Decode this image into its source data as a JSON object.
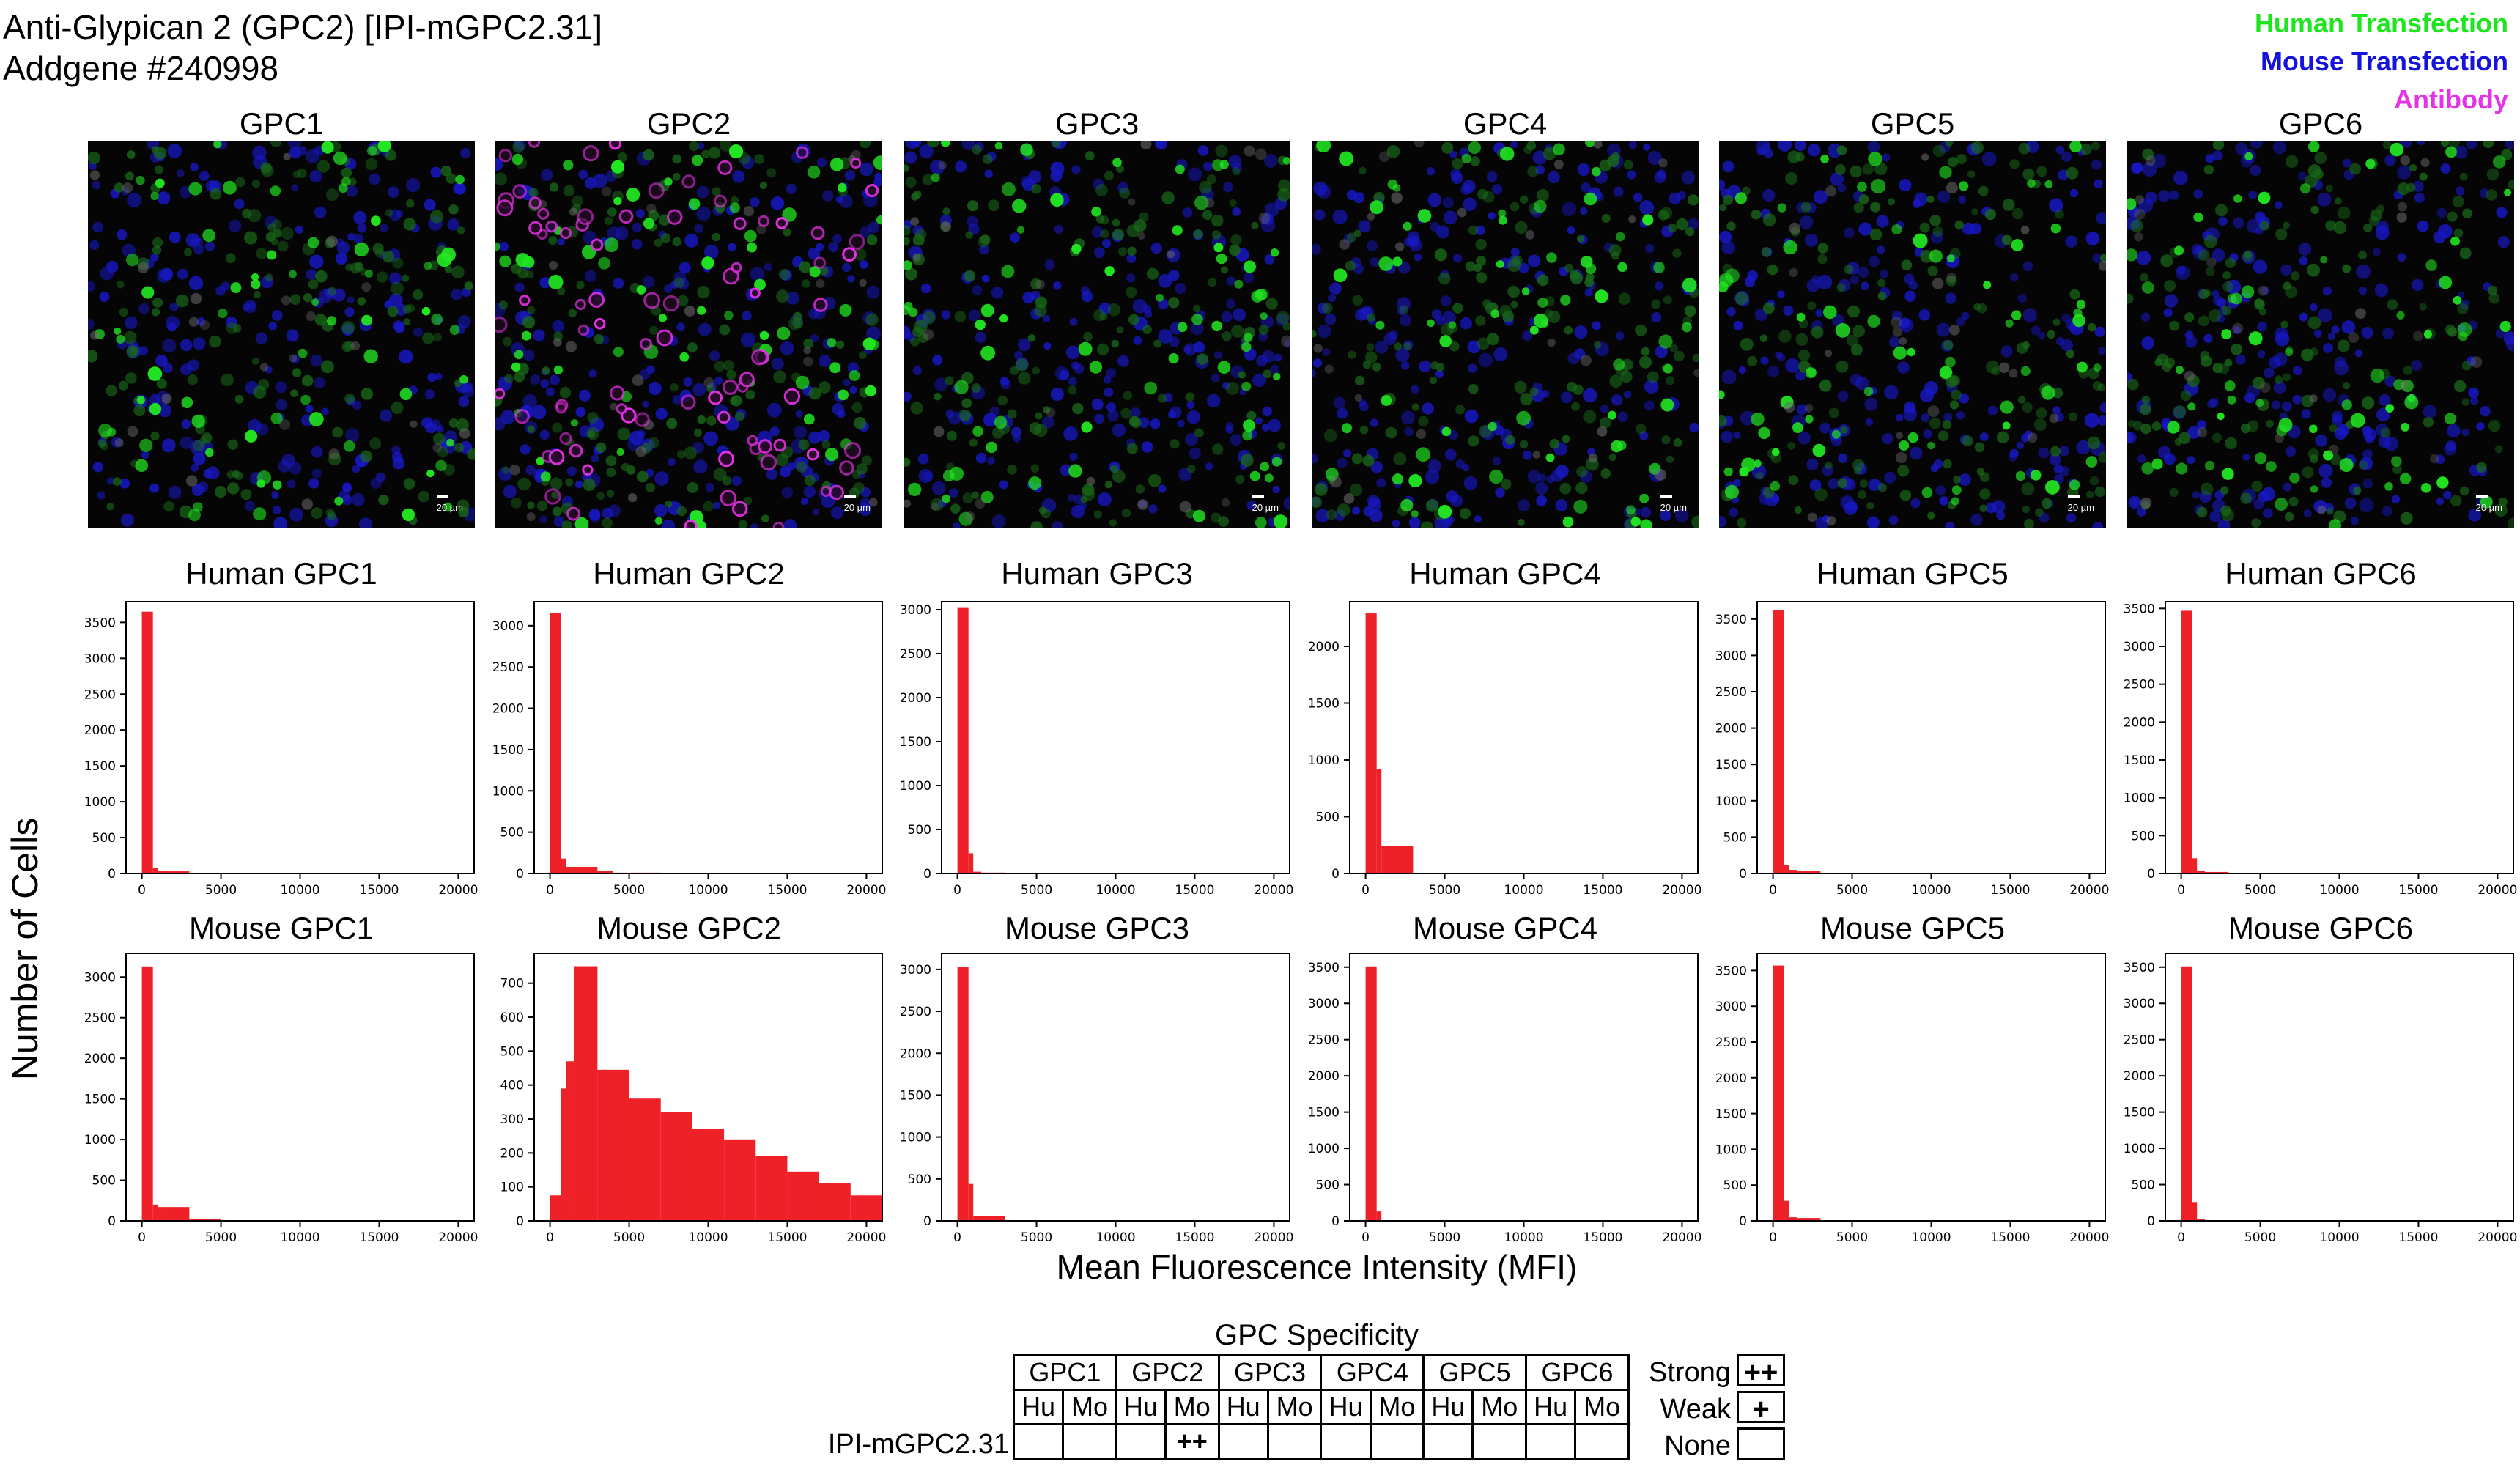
{
  "header": {
    "title_line1": "Anti-Glypican 2 (GPC2) [IPI-mGPC2.31]",
    "title_line2": "Addgene #240998"
  },
  "legend": [
    {
      "label": "Human Transfection",
      "color": "#1EE61E"
    },
    {
      "label": "Mouse Transfection",
      "color": "#1414DC"
    },
    {
      "label": "Antibody",
      "color": "#E632E6"
    }
  ],
  "images": [
    {
      "title": "GPC1",
      "scale": "20 µm",
      "antibody": false
    },
    {
      "title": "GPC2",
      "scale": "20 µm",
      "antibody": true
    },
    {
      "title": "GPC3",
      "scale": "20 µm",
      "antibody": false
    },
    {
      "title": "GPC4",
      "scale": "20 µm",
      "antibody": false
    },
    {
      "title": "GPC5",
      "scale": "20 µm",
      "antibody": false
    },
    {
      "title": "GPC6",
      "scale": "20 µm",
      "antibody": false
    }
  ],
  "axes": {
    "ylabel": "Number of Cells",
    "xlabel": "Mean Fluorescence Intensity (MFI)"
  },
  "chart_data": [
    {
      "type": "bar",
      "title": "Human GPC1",
      "xlim": [
        -1000,
        21000
      ],
      "xticks": [
        0,
        5000,
        10000,
        15000,
        20000
      ],
      "ylim": [
        0,
        3800
      ],
      "yticks": [
        0,
        500,
        1000,
        1500,
        2000,
        2500,
        3000,
        3500
      ],
      "color": "#EE2028",
      "bin_edges": [
        0,
        700,
        1000,
        1500,
        3000
      ],
      "values": [
        3650,
        80,
        40,
        30
      ]
    },
    {
      "type": "bar",
      "title": "Human GPC2",
      "xlim": [
        -1000,
        21000
      ],
      "xticks": [
        0,
        5000,
        10000,
        15000,
        20000
      ],
      "ylim": [
        0,
        3300
      ],
      "yticks": [
        0,
        500,
        1000,
        1500,
        2000,
        2500,
        3000
      ],
      "color": "#EE2028",
      "bin_edges": [
        0,
        700,
        1000,
        1500,
        3000,
        4000,
        7000
      ],
      "values": [
        3150,
        180,
        80,
        80,
        30,
        10
      ]
    },
    {
      "type": "bar",
      "title": "Human GPC3",
      "xlim": [
        -1000,
        21000
      ],
      "xticks": [
        0,
        5000,
        10000,
        15000,
        20000
      ],
      "ylim": [
        0,
        3100
      ],
      "yticks": [
        0,
        500,
        1000,
        1500,
        2000,
        2500,
        3000
      ],
      "color": "#EE2028",
      "bin_edges": [
        0,
        700,
        1000,
        1500,
        3000
      ],
      "values": [
        3020,
        230,
        20,
        10
      ]
    },
    {
      "type": "bar",
      "title": "Human GPC4",
      "xlim": [
        -1000,
        21000
      ],
      "xticks": [
        0,
        5000,
        10000,
        15000,
        20000
      ],
      "ylim": [
        0,
        2400
      ],
      "yticks": [
        0,
        500,
        1000,
        1500,
        2000
      ],
      "color": "#EE2028",
      "bin_edges": [
        0,
        700,
        1000,
        1500,
        3000
      ],
      "values": [
        2290,
        920,
        240,
        240
      ]
    },
    {
      "type": "bar",
      "title": "Human GPC5",
      "xlim": [
        -1000,
        21000
      ],
      "xticks": [
        0,
        5000,
        10000,
        15000,
        20000
      ],
      "ylim": [
        0,
        3750
      ],
      "yticks": [
        0,
        500,
        1000,
        1500,
        2000,
        2500,
        3000,
        3500
      ],
      "color": "#EE2028",
      "bin_edges": [
        0,
        700,
        1000,
        1500,
        3000
      ],
      "values": [
        3620,
        120,
        50,
        40
      ]
    },
    {
      "type": "bar",
      "title": "Human GPC6",
      "xlim": [
        -1000,
        21000
      ],
      "xticks": [
        0,
        5000,
        10000,
        15000,
        20000
      ],
      "ylim": [
        0,
        3600
      ],
      "yticks": [
        0,
        500,
        1000,
        1500,
        2000,
        2500,
        3000,
        3500
      ],
      "color": "#EE2028",
      "bin_edges": [
        0,
        700,
        1000,
        1500,
        3000
      ],
      "values": [
        3470,
        200,
        30,
        20
      ]
    },
    {
      "type": "bar",
      "title": "Mouse GPC1",
      "xlim": [
        -1000,
        21000
      ],
      "xticks": [
        0,
        5000,
        10000,
        15000,
        20000
      ],
      "ylim": [
        0,
        3300
      ],
      "yticks": [
        0,
        500,
        1000,
        1500,
        2000,
        2500,
        3000
      ],
      "color": "#EE2028",
      "bin_edges": [
        0,
        700,
        1000,
        1500,
        3000,
        5000
      ],
      "values": [
        3130,
        200,
        170,
        170,
        20
      ]
    },
    {
      "type": "bar",
      "title": "Mouse GPC2",
      "xlim": [
        -1000,
        21000
      ],
      "xticks": [
        0,
        5000,
        10000,
        15000,
        20000
      ],
      "ylim": [
        0,
        790
      ],
      "yticks": [
        0,
        100,
        200,
        300,
        400,
        500,
        600,
        700
      ],
      "color": "#EE2028",
      "bin_edges": [
        0,
        700,
        1000,
        1500,
        3000,
        5000,
        7000,
        9000,
        11000,
        13000,
        15000,
        17000,
        19000,
        21000
      ],
      "values": [
        75,
        390,
        470,
        750,
        445,
        360,
        320,
        270,
        240,
        190,
        145,
        110,
        75
      ]
    },
    {
      "type": "bar",
      "title": "Mouse GPC3",
      "xlim": [
        -1000,
        21000
      ],
      "xticks": [
        0,
        5000,
        10000,
        15000,
        20000
      ],
      "ylim": [
        0,
        3200
      ],
      "yticks": [
        0,
        500,
        1000,
        1500,
        2000,
        2500,
        3000
      ],
      "color": "#EE2028",
      "bin_edges": [
        0,
        700,
        1000,
        1500,
        3000
      ],
      "values": [
        3030,
        440,
        60,
        60
      ]
    },
    {
      "type": "bar",
      "title": "Mouse GPC4",
      "xlim": [
        -1000,
        21000
      ],
      "xticks": [
        0,
        5000,
        10000,
        15000,
        20000
      ],
      "ylim": [
        0,
        3700
      ],
      "yticks": [
        0,
        500,
        1000,
        1500,
        2000,
        2500,
        3000,
        3500
      ],
      "color": "#EE2028",
      "bin_edges": [
        0,
        700,
        1000
      ],
      "values": [
        3510,
        130
      ]
    },
    {
      "type": "bar",
      "title": "Mouse GPC5",
      "xlim": [
        -1000,
        21000
      ],
      "xticks": [
        0,
        5000,
        10000,
        15000,
        20000
      ],
      "ylim": [
        0,
        3750
      ],
      "yticks": [
        0,
        500,
        1000,
        1500,
        2000,
        2500,
        3000,
        3500
      ],
      "color": "#EE2028",
      "bin_edges": [
        0,
        700,
        1000,
        1500,
        3000
      ],
      "values": [
        3570,
        280,
        50,
        40
      ]
    },
    {
      "type": "bar",
      "title": "Mouse GPC6",
      "xlim": [
        -1000,
        21000
      ],
      "xticks": [
        0,
        5000,
        10000,
        15000,
        20000
      ],
      "ylim": [
        0,
        3700
      ],
      "yticks": [
        0,
        500,
        1000,
        1500,
        2000,
        2500,
        3000,
        3500
      ],
      "color": "#EE2028",
      "bin_edges": [
        0,
        700,
        1000,
        1500,
        3000
      ],
      "values": [
        3510,
        260,
        30,
        10
      ]
    }
  ],
  "specificity": {
    "title": "GPC Specificity",
    "groups": [
      "GPC1",
      "GPC2",
      "GPC3",
      "GPC4",
      "GPC5",
      "GPC6"
    ],
    "subheaders": [
      "Hu",
      "Mo",
      "Hu",
      "Mo",
      "Hu",
      "Mo",
      "Hu",
      "Mo",
      "Hu",
      "Mo",
      "Hu",
      "Mo"
    ],
    "row_label": "IPI-mGPC2.31",
    "row_values": [
      "",
      "",
      "",
      "++",
      "",
      "",
      "",
      "",
      "",
      "",
      "",
      ""
    ],
    "key": [
      {
        "label": "Strong",
        "symbol": "++"
      },
      {
        "label": "Weak",
        "symbol": "+"
      },
      {
        "label": "None",
        "symbol": ""
      }
    ]
  }
}
